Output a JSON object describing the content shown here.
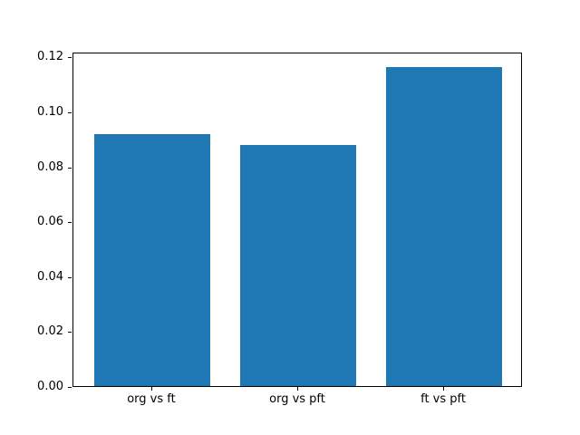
{
  "chart_data": {
    "type": "bar",
    "title": "",
    "xlabel": "",
    "ylabel": "",
    "categories": [
      "org vs ft",
      "org vs pft",
      "ft vs pft"
    ],
    "values": [
      0.0917,
      0.0877,
      0.1162
    ],
    "bar_color": "#1f77b4",
    "bar_width_fraction": 0.8,
    "xlim": [
      -0.54,
      2.54
    ],
    "ylim": [
      0,
      0.1218
    ],
    "yticks": [
      0.0,
      0.02,
      0.04,
      0.06,
      0.08,
      0.1,
      0.12
    ],
    "ytick_labels": [
      "0.00",
      "0.02",
      "0.04",
      "0.06",
      "0.08",
      "0.10",
      "0.12"
    ],
    "grid": false,
    "legend": null,
    "background_color": "#ffffff",
    "spine_color": "#000000"
  }
}
